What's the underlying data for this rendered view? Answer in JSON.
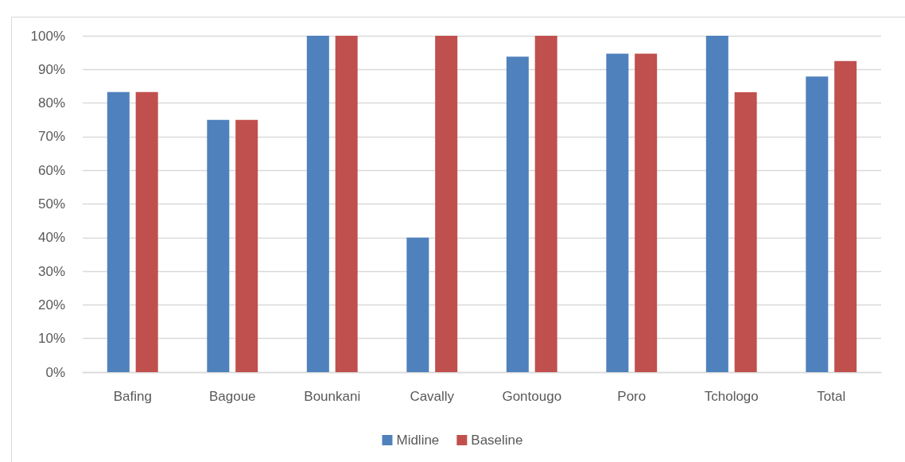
{
  "chart_data": {
    "type": "bar",
    "categories": [
      "Bafing",
      "Bagoue",
      "Bounkani",
      "Cavally",
      "Gontougo",
      "Poro",
      "Tchologo",
      "Total"
    ],
    "series": [
      {
        "name": "Midline",
        "color": "#4f81bd",
        "values": [
          83.3,
          75,
          100,
          40,
          93.8,
          94.7,
          100,
          87.9
        ]
      },
      {
        "name": "Baseline",
        "color": "#c0504d",
        "values": [
          83.3,
          75,
          100,
          100,
          100,
          94.7,
          83.2,
          92.5
        ]
      }
    ],
    "ylim": [
      0,
      100
    ],
    "yticks": [
      {
        "value": 0,
        "label": "0%"
      },
      {
        "value": 10,
        "label": "10%"
      },
      {
        "value": 20,
        "label": "20%"
      },
      {
        "value": 30,
        "label": "30%"
      },
      {
        "value": 40,
        "label": "40%"
      },
      {
        "value": 50,
        "label": "50%"
      },
      {
        "value": 60,
        "label": "60%"
      },
      {
        "value": 70,
        "label": "70%"
      },
      {
        "value": 80,
        "label": "80%"
      },
      {
        "value": 90,
        "label": "90%"
      },
      {
        "value": 100,
        "label": "100%"
      }
    ],
    "grid": "y",
    "legend": "bottom"
  }
}
